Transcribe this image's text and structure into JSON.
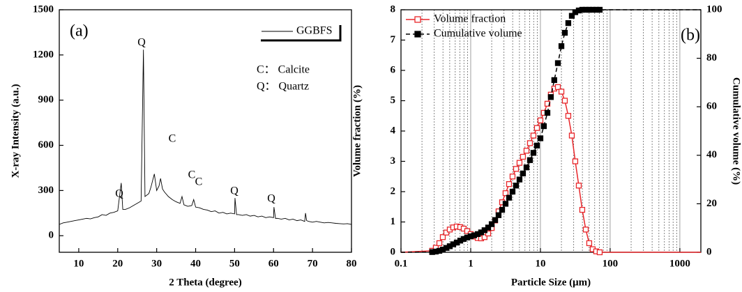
{
  "chart_data": [
    {
      "type": "line",
      "xlabel": "2 Theta (degree)",
      "ylabel": "X-ray Intensity (a.u.)",
      "xlim": [
        5,
        80
      ],
      "xticks": [
        10,
        20,
        30,
        40,
        50,
        60,
        70,
        80
      ],
      "ylim": [
        -110,
        1500
      ],
      "yticks": [
        0,
        300,
        600,
        900,
        1200,
        1500
      ],
      "legend_loc": "upper right",
      "annotations": [
        "(a)",
        "Q",
        "Q",
        "C",
        "C",
        "C",
        "Q",
        "Q",
        "C： Calcite",
        "Q： Quartz"
      ],
      "x": [
        5,
        6,
        7,
        8,
        9,
        10,
        11,
        12,
        13,
        14,
        15,
        16,
        17,
        18,
        19,
        20,
        20.9,
        21.3,
        22,
        23,
        24,
        25,
        26,
        26.6,
        27,
        28,
        28.5,
        29.4,
        30,
        30.6,
        31,
        31.5,
        32,
        33,
        34,
        35,
        36,
        36.5,
        37,
        38,
        39,
        39.5,
        40,
        41,
        42,
        43,
        44,
        45,
        46,
        47,
        48,
        49,
        50,
        50.1,
        50.5,
        51,
        52,
        53,
        54,
        55,
        56,
        57,
        58,
        59,
        60,
        60.1,
        60.5,
        61,
        62,
        63,
        64,
        65,
        66,
        67,
        68,
        68.2,
        68.5,
        69,
        70,
        71,
        72,
        73,
        74,
        75,
        76,
        77,
        78,
        79,
        80
      ],
      "series": [
        {
          "name": "GGBFS",
          "color": "#000000",
          "values": [
            75,
            85,
            90,
            95,
            100,
            105,
            110,
            115,
            112,
            120,
            125,
            140,
            135,
            150,
            155,
            165,
            350,
            175,
            175,
            185,
            200,
            215,
            230,
            1235,
            260,
            280,
            320,
            410,
            300,
            330,
            380,
            310,
            290,
            260,
            240,
            225,
            215,
            260,
            205,
            195,
            200,
            240,
            190,
            185,
            175,
            170,
            160,
            165,
            150,
            155,
            145,
            150,
            145,
            250,
            140,
            140,
            135,
            140,
            130,
            135,
            125,
            130,
            120,
            125,
            120,
            190,
            115,
            115,
            110,
            115,
            105,
            110,
            100,
            105,
            95,
            150,
            100,
            95,
            90,
            95,
            90,
            85,
            88,
            85,
            82,
            80,
            78,
            80,
            75
          ]
        }
      ]
    },
    {
      "type": "line",
      "xlabel": "Particle Size (μm)",
      "ylabel": "Volume fraction (%)",
      "y2label": "Cumulative volume (%)",
      "xlog": true,
      "x_grid": true,
      "xlim": [
        0.1,
        2000
      ],
      "xticks": [
        0.1,
        1,
        10,
        100,
        1000
      ],
      "ylim": [
        0,
        8
      ],
      "yticks": [
        0,
        1,
        2,
        3,
        4,
        5,
        6,
        7,
        8
      ],
      "y2lim": [
        0,
        100
      ],
      "y2ticks": [
        0,
        20,
        40,
        60,
        80,
        100
      ],
      "legend_loc": "upper left",
      "annotations": [
        "(b)"
      ],
      "x": [
        0.1,
        0.28,
        0.316,
        0.355,
        0.398,
        0.447,
        0.501,
        0.562,
        0.631,
        0.708,
        0.794,
        0.891,
        1,
        1.12,
        1.26,
        1.41,
        1.58,
        1.78,
        2,
        2.24,
        2.51,
        2.82,
        3.16,
        3.55,
        3.98,
        4.47,
        5.01,
        5.62,
        6.31,
        7.08,
        7.94,
        8.91,
        10,
        11.2,
        12.6,
        14.1,
        15.8,
        17.8,
        20,
        22.4,
        25.1,
        28.2,
        31.6,
        35.5,
        39.8,
        44.7,
        50.1,
        56.2,
        63.1,
        70.8,
        2000
      ],
      "series": [
        {
          "name": "Volume fraction",
          "color": "#e8262a",
          "marker": "open-square",
          "values": [
            0,
            0.05,
            0.15,
            0.3,
            0.5,
            0.65,
            0.75,
            0.82,
            0.85,
            0.83,
            0.78,
            0.7,
            0.6,
            0.52,
            0.47,
            0.46,
            0.5,
            0.62,
            0.8,
            1.05,
            1.35,
            1.65,
            1.95,
            2.25,
            2.5,
            2.75,
            2.95,
            3.15,
            3.35,
            3.6,
            3.85,
            4.1,
            4.35,
            4.6,
            4.9,
            5.2,
            5.4,
            5.45,
            5.3,
            5.0,
            4.5,
            3.85,
            3.0,
            2.2,
            1.4,
            0.75,
            0.3,
            0.1,
            0.03,
            0,
            0
          ]
        },
        {
          "name": "Cumulative volume",
          "color": "#000000",
          "marker": "filled-square",
          "dashed": true,
          "axis": "y2",
          "values": [
            0,
            0.1,
            0.3,
            0.6,
            1.1,
            1.8,
            2.5,
            3.3,
            4.0,
            4.8,
            5.5,
            6.1,
            6.6,
            7.0,
            7.5,
            8.2,
            9.1,
            10.2,
            11.6,
            13.3,
            15.3,
            17.5,
            20,
            22.5,
            25,
            27.5,
            30,
            32.5,
            35,
            38,
            41,
            44,
            47,
            52,
            57.5,
            64,
            71,
            78,
            85,
            90.5,
            94.5,
            97.5,
            99,
            99.7,
            100,
            100,
            100,
            100,
            100,
            100,
            100
          ]
        }
      ]
    }
  ]
}
